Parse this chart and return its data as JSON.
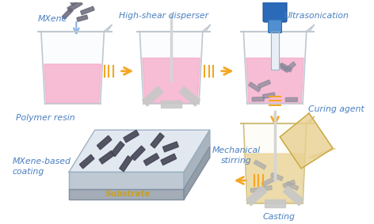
{
  "bg_color": "#ffffff",
  "text_color": "#4a7fc1",
  "arrow_color": "#f5a623",
  "beaker_edge": "#c0c8d0",
  "beaker_fill": "#f0f5fa",
  "pink_liquid": "#f5a8c8",
  "gray_mxene": "#5a5a6a",
  "blue_sonicator_top": "#2a6ab8",
  "blue_sonicator_mid": "#5090d0",
  "beige_liquid": "#e8d090",
  "substrate_top": "#d8e0e8",
  "substrate_side": "#a0aab4",
  "substrate_label": "#c8a020",
  "labels": {
    "mxene": "MXene",
    "disperser": "High-shear disperser",
    "ultrasonication": "Ultrasonication",
    "polymer": "Polymer resin",
    "curing": "Curing agent",
    "mechanical": "Mechanical\nstirring",
    "casting": "Casting",
    "coating": "MXene-based\ncoating",
    "substrate": "Substrate"
  },
  "lfs": 7.8
}
